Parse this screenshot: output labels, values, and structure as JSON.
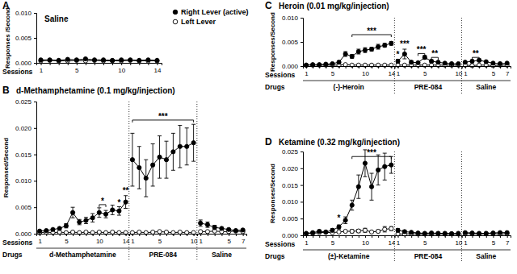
{
  "chart_data": [
    {
      "type": "line",
      "label": "A",
      "title": "Saline",
      "x_label": "Sessions",
      "y_label": "Responses /Second",
      "ylim": [
        0,
        0.01
      ],
      "yticks": [
        {
          "value": 0,
          "label": "0.000"
        },
        0.005,
        {
          "value": 0.01,
          "label": "0.010"
        }
      ],
      "legend": "right",
      "series": [
        {
          "name": "Right Lever (active)",
          "color": "#000000",
          "marker": "circle",
          "line_style": "solid",
          "values": [
            [
              0.0006,
              0.0006,
              0.0005,
              0.0007,
              0.0006,
              0.0008,
              0.0006,
              0.0006,
              0.0005,
              0.0006,
              0.0006,
              0.0005,
              0.0006,
              0.0005
            ]
          ]
        },
        {
          "name": "Left Lever",
          "color": "#000000",
          "marker": "open-circle",
          "line_style": "solid",
          "values": [
            [
              0.0004,
              0.0005,
              0.0004,
              0.0004,
              0.0005,
              0.0004,
              0.0005,
              0.0004,
              0.0004,
              0.0004,
              0.0005,
              0.0004,
              0.0004,
              0.0004
            ]
          ]
        }
      ],
      "segments": [
        {
          "categories": [
            1,
            null,
            null,
            null,
            5,
            null,
            null,
            null,
            null,
            10,
            null,
            null,
            null,
            14
          ],
          "annotations": []
        }
      ]
    },
    {
      "type": "line",
      "label": "B",
      "title": "d-Methamphetamine (0.1 mg/kg/injection)",
      "x_label": "Sessions",
      "drug_label": "Drugs",
      "y_label": "Responsed/Second",
      "ylim": [
        0,
        0.025
      ],
      "yticks": [
        {
          "value": 0,
          "label": "0.000"
        },
        0.005,
        {
          "value": 0.01,
          "label": "0.010"
        },
        0.015,
        {
          "value": 0.02,
          "label": "0.020"
        },
        0.025
      ],
      "series": [
        {
          "color": "#000000",
          "marker": "circle",
          "line_style": "solid",
          "values": [
            [
              0.0005,
              0.0006,
              0.0008,
              0.001,
              0.0015,
              0.004,
              0.0022,
              0.0025,
              0.003,
              0.004,
              0.0037,
              0.0045,
              0.0043,
              0.006
            ],
            [
              0.014,
              0.0125,
              0.0105,
              0.013,
              0.0145,
              0.014,
              0.0155,
              0.0165,
              0.0165,
              0.0172
            ],
            [
              0.002,
              0.0017,
              0.0012,
              0.001,
              0.0008,
              0.0006,
              0.0007
            ]
          ],
          "errors": [
            [
              null,
              null,
              null,
              null,
              0.0004,
              0.001,
              0.0005,
              0.0006,
              0.0008,
              0.0009,
              0.0007,
              0.0009,
              0.0008,
              0.0012
            ],
            [
              0.005,
              0.004,
              0.0035,
              0.004,
              0.004,
              0.0035,
              0.0035,
              0.004,
              0.0035,
              0.0035
            ],
            [
              0.0006,
              0.0005,
              0.0004,
              null,
              null,
              null,
              null
            ]
          ]
        },
        {
          "color": "#000000",
          "marker": "open-circle",
          "line_style": "solid",
          "values": [
            [
              0.0002,
              0.0003,
              0.0002,
              0.0003,
              0.0002,
              0.0003,
              0.0002,
              0.0003,
              0.0002,
              0.0003,
              0.0002,
              0.0003,
              0.0002,
              0.0002
            ],
            [
              0.0002,
              0.0003,
              0.0002,
              0.0003,
              0.0004,
              0.0003,
              0.0002,
              0.0003,
              0.0002,
              0.0002
            ],
            [
              0.0004,
              0.0004,
              0.0005,
              0.0004,
              0.0004,
              0.0005,
              0.0004
            ]
          ]
        }
      ],
      "segments": [
        {
          "drug": "d-Methamphetamine",
          "categories": [
            1,
            null,
            null,
            null,
            5,
            null,
            null,
            null,
            null,
            10,
            null,
            null,
            null,
            14
          ],
          "annotations": [
            {
              "text": "*",
              "x": [
                10,
                11
              ],
              "y": 0.0055
            },
            {
              "text": "*",
              "x": [
                13
              ],
              "y": 0.0052
            },
            {
              "text": "**",
              "x": [
                14
              ],
              "y": 0.0075
            }
          ]
        },
        {
          "drug": "PRE-084",
          "categories": [
            1,
            null,
            null,
            null,
            5,
            null,
            null,
            null,
            null,
            10
          ],
          "annotations": [
            {
              "text": "***",
              "x": [
                1,
                10
              ],
              "y": 0.0215
            }
          ]
        },
        {
          "drug": "Saline",
          "categories": [
            1,
            null,
            null,
            null,
            5,
            null,
            7
          ],
          "annotations": []
        }
      ]
    },
    {
      "type": "line",
      "label": "C",
      "title": "Heroin (0.01 mg/kg/injection)",
      "x_label": "Sessions",
      "drug_label": "Drugs",
      "y_label": "Responses/Second",
      "ylim": [
        0,
        0.01
      ],
      "yticks": [
        {
          "value": 0,
          "label": "0.000"
        },
        0.005,
        {
          "value": 0.01,
          "label": "0.010"
        }
      ],
      "series": [
        {
          "color": "#000000",
          "marker": "circle",
          "line_style": "solid",
          "values": [
            [
              0.0002,
              0.0003,
              0.0003,
              0.0004,
              0.0005,
              0.0008,
              0.0025,
              0.002,
              0.003,
              0.0033,
              0.0035,
              0.004,
              0.0043,
              0.0047
            ],
            [
              0.001,
              0.0025,
              0.0008,
              0.0007,
              0.0018,
              0.001,
              0.0008,
              0.0006,
              0.0005,
              0.0005
            ],
            [
              0.0008,
              0.001,
              0.0012,
              0.0009,
              0.0006,
              0.0005,
              0.0006
            ]
          ],
          "errors": [
            [
              null,
              null,
              null,
              null,
              null,
              0.0003,
              0.0005,
              0.0004,
              0.0005,
              0.0005,
              0.0004,
              0.0005,
              0.0004,
              0.0004
            ],
            [
              0.0004,
              0.001,
              0.0003,
              null,
              0.0004,
              0.0003,
              null,
              null,
              null,
              null
            ],
            [
              null,
              0.0003,
              0.0003,
              null,
              null,
              null,
              null
            ]
          ]
        },
        {
          "color": "#000000",
          "marker": "open-circle",
          "line_style": "solid",
          "values": [
            [
              0.0002,
              0.0002,
              0.0002,
              0.0002,
              0.0002,
              0.0002,
              0.0003,
              0.0002,
              0.0002,
              0.0002,
              0.0002,
              0.0002,
              0.0002,
              0.0002
            ],
            [
              0.0002,
              0.0002,
              0.0002,
              0.0002,
              0.0002,
              0.0002,
              0.0002,
              0.0002,
              0.0002,
              0.0002
            ],
            [
              0.0002,
              0.0001,
              0.0002,
              0.0002,
              0.0001,
              0.0002,
              0.0002
            ]
          ]
        }
      ],
      "segments": [
        {
          "drug": "(-)-Heroin",
          "categories": [
            1,
            null,
            null,
            null,
            5,
            null,
            null,
            null,
            null,
            10,
            null,
            null,
            null,
            14
          ],
          "annotations": [
            {
              "text": "***",
              "x": [
                8,
                14
              ],
              "y": 0.0065
            }
          ]
        },
        {
          "drug": "PRE-084",
          "categories": [
            1,
            null,
            null,
            null,
            5,
            null,
            null,
            null,
            null,
            10
          ],
          "annotations": [
            {
              "text": "*",
              "x": [
                1
              ],
              "y": 0.0017
            },
            {
              "text": "***",
              "x": [
                2
              ],
              "y": 0.0038
            },
            {
              "text": "***",
              "x": [
                4,
                5
              ],
              "y": 0.0026
            },
            {
              "text": "**",
              "x": [
                6,
                7
              ],
              "y": 0.0018
            }
          ]
        },
        {
          "drug": "Saline",
          "categories": [
            1,
            null,
            null,
            null,
            5,
            null,
            7
          ],
          "annotations": [
            {
              "text": "**",
              "x": [
                2,
                3
              ],
              "y": 0.0018
            }
          ]
        }
      ]
    },
    {
      "type": "line",
      "label": "D",
      "title": "Ketamine (0.32 mg/kg/injection)",
      "x_label": "Sessions",
      "drug_label": "Drugs",
      "y_label": "Responses/Second",
      "ylim": [
        0,
        0.025
      ],
      "yticks": [
        {
          "value": 0,
          "label": "0.000"
        },
        0.005,
        {
          "value": 0.01,
          "label": "0.010"
        },
        0.015,
        {
          "value": 0.02,
          "label": "0.020"
        },
        0.025
      ],
      "series": [
        {
          "color": "#000000",
          "marker": "circle",
          "line_style": "solid",
          "values": [
            [
              0.0006,
              0.0008,
              0.0012,
              0.001,
              0.0015,
              0.0025,
              0.0045,
              0.009,
              0.0145,
              0.0215,
              0.0145,
              0.0195,
              0.0205,
              0.021
            ],
            [
              0.0015,
              0.0011,
              0.0009,
              0.0007,
              0.0006,
              0.0007,
              0.0006,
              0.0006,
              0.0005,
              0.0006
            ],
            [
              0.0008,
              0.0007,
              0.0006,
              0.0006,
              0.0007,
              0.0008,
              0.0008
            ]
          ],
          "errors": [
            [
              null,
              null,
              0.0004,
              null,
              0.0005,
              0.0006,
              0.001,
              0.0015,
              0.0035,
              0.004,
              0.004,
              0.0045,
              0.004,
              0.0025
            ],
            [
              0.0005,
              0.0004,
              null,
              null,
              null,
              null,
              null,
              null,
              null,
              null
            ],
            [
              null,
              null,
              null,
              null,
              null,
              null,
              null
            ]
          ]
        },
        {
          "color": "#000000",
          "marker": "open-circle",
          "line_style": "solid",
          "values": [
            [
              0.0005,
              0.0006,
              0.0008,
              0.0009,
              0.0008,
              0.001,
              0.0012,
              0.0012,
              0.0013,
              0.0015,
              0.001,
              0.0012,
              0.0018,
              0.002
            ],
            [
              0.0004,
              0.0004,
              0.0005,
              0.0004,
              0.0004,
              0.0004,
              0.0005,
              0.0004,
              0.0004,
              0.0004
            ],
            [
              0.0005,
              0.0005,
              0.0004,
              0.0005,
              0.0005,
              0.0004,
              0.0005
            ]
          ],
          "errors": [
            [
              null,
              null,
              null,
              null,
              null,
              null,
              null,
              0.0005,
              0.0005,
              0.0006,
              null,
              0.0004,
              0.0008,
              0.0006
            ],
            [
              null,
              null,
              null,
              null,
              null,
              null,
              null,
              null,
              null,
              null
            ],
            [
              null,
              null,
              null,
              null,
              null,
              null,
              null
            ]
          ]
        }
      ],
      "segments": [
        {
          "drug": "(±)-Ketamine",
          "categories": [
            1,
            null,
            null,
            null,
            5,
            null,
            null,
            null,
            null,
            10,
            null,
            null,
            null,
            14
          ],
          "annotations": [
            {
              "text": "*",
              "x": [
                6
              ],
              "y": 0.004
            },
            {
              "text": "***",
              "x": [
                8,
                14
              ],
              "y": 0.0235
            }
          ]
        },
        {
          "drug": "PRE-084",
          "categories": [
            1,
            null,
            null,
            null,
            5,
            null,
            null,
            null,
            null,
            10
          ],
          "annotations": []
        },
        {
          "drug": "Saline",
          "categories": [
            1,
            null,
            null,
            null,
            5,
            null,
            7
          ],
          "annotations": []
        }
      ]
    }
  ]
}
